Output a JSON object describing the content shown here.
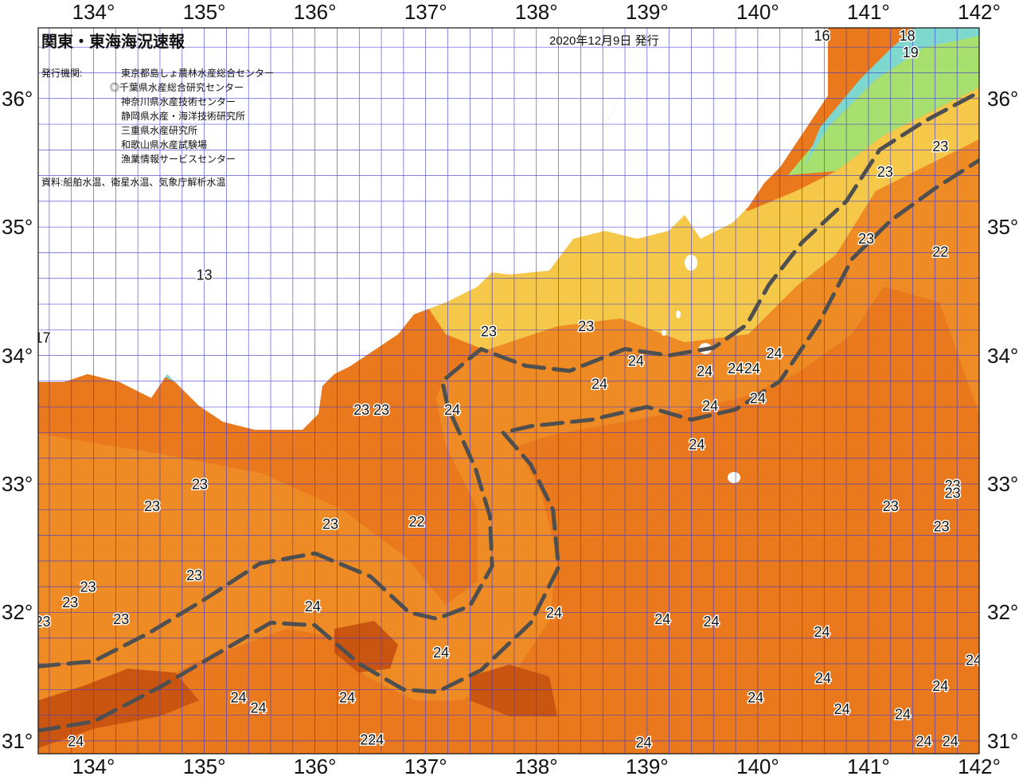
{
  "header": {
    "title": "関東・東海海況速報",
    "date": "2020年12月9日 発行",
    "issuers_label": "発行機関:",
    "issuers": [
      "東京都島しょ農林水産総合センター",
      "◎千葉県水産総合研究センター",
      "神奈川県水産技術センター",
      "静岡県水産・海洋技術研究所",
      "三重県水産研究所",
      "和歌山県水産試験場",
      "漁業情報サービスセンター"
    ],
    "source": "資料:船舶水温、衛星水温、気象庁解析水温"
  },
  "axes": {
    "longitude_labels": [
      "134°",
      "135°",
      "136°",
      "137°",
      "138°",
      "139°",
      "140°",
      "141°",
      "142°"
    ],
    "longitude_values": [
      134,
      135,
      136,
      137,
      138,
      139,
      140,
      141,
      142
    ],
    "latitude_labels": [
      "36°",
      "35°",
      "34°",
      "33°",
      "32°",
      "31°"
    ],
    "latitude_values": [
      36,
      35,
      34,
      33,
      32,
      31
    ],
    "lon_range": [
      133.5,
      142.0
    ],
    "lat_range": [
      30.9,
      36.55
    ]
  },
  "colors": {
    "land": "#ffffff",
    "sea_22": "#f39a2e",
    "sea_23": "#ec8020",
    "sea_24": "#e26e14",
    "sea_25": "#c95510",
    "coast_21": "#f5c84a",
    "coast_19": "#a8e070",
    "coast_17": "#7fd8ce",
    "grid": "#3d3ad6",
    "kuroshio_axis": "#4f4f4f"
  },
  "temperature_labels": [
    {
      "text": "23",
      "lon": 137.57,
      "lat": 34.18
    },
    {
      "text": "23",
      "lon": 138.45,
      "lat": 34.22
    },
    {
      "text": "23",
      "lon": 141.65,
      "lat": 35.62
    },
    {
      "text": "23",
      "lon": 141.15,
      "lat": 35.42
    },
    {
      "text": "23",
      "lon": 140.98,
      "lat": 34.9
    },
    {
      "text": "22",
      "lon": 141.65,
      "lat": 34.8
    },
    {
      "text": "24",
      "lon": 140.15,
      "lat": 34.01
    },
    {
      "text": "24",
      "lon": 139.95,
      "lat": 33.89
    },
    {
      "text": "24",
      "lon": 139.8,
      "lat": 33.89
    },
    {
      "text": "24",
      "lon": 139.52,
      "lat": 33.87
    },
    {
      "text": "24",
      "lon": 138.9,
      "lat": 33.95
    },
    {
      "text": "24",
      "lon": 138.57,
      "lat": 33.77
    },
    {
      "text": "24",
      "lon": 140.0,
      "lat": 33.66
    },
    {
      "text": "24",
      "lon": 139.57,
      "lat": 33.6
    },
    {
      "text": "24",
      "lon": 139.45,
      "lat": 33.3
    },
    {
      "text": "24",
      "lon": 137.24,
      "lat": 33.57
    },
    {
      "text": "23",
      "lon": 136.42,
      "lat": 33.57
    },
    {
      "text": "23",
      "lon": 136.6,
      "lat": 33.57
    },
    {
      "text": "23",
      "lon": 134.96,
      "lat": 32.99
    },
    {
      "text": "23",
      "lon": 134.53,
      "lat": 32.82
    },
    {
      "text": "23",
      "lon": 136.14,
      "lat": 32.68
    },
    {
      "text": "22",
      "lon": 136.92,
      "lat": 32.7
    },
    {
      "text": "23",
      "lon": 134.91,
      "lat": 32.28
    },
    {
      "text": "23",
      "lon": 133.95,
      "lat": 32.19
    },
    {
      "text": "23",
      "lon": 133.79,
      "lat": 32.07
    },
    {
      "text": "23",
      "lon": 133.54,
      "lat": 31.92
    },
    {
      "text": "23",
      "lon": 134.25,
      "lat": 31.94
    },
    {
      "text": "24",
      "lon": 135.98,
      "lat": 32.04
    },
    {
      "text": "24",
      "lon": 138.16,
      "lat": 31.99
    },
    {
      "text": "24",
      "lon": 139.14,
      "lat": 31.94
    },
    {
      "text": "24",
      "lon": 139.58,
      "lat": 31.92
    },
    {
      "text": "24",
      "lon": 140.58,
      "lat": 31.84
    },
    {
      "text": "24",
      "lon": 141.95,
      "lat": 31.62
    },
    {
      "text": "24",
      "lon": 137.14,
      "lat": 31.68
    },
    {
      "text": "24",
      "lon": 140.59,
      "lat": 31.48
    },
    {
      "text": "24",
      "lon": 141.65,
      "lat": 31.42
    },
    {
      "text": "24",
      "lon": 135.31,
      "lat": 31.33
    },
    {
      "text": "24",
      "lon": 135.49,
      "lat": 31.25
    },
    {
      "text": "24",
      "lon": 136.29,
      "lat": 31.33
    },
    {
      "text": "24",
      "lon": 139.98,
      "lat": 31.33
    },
    {
      "text": "24",
      "lon": 140.76,
      "lat": 31.24
    },
    {
      "text": "24",
      "lon": 141.31,
      "lat": 31.2
    },
    {
      "text": "23",
      "lon": 141.2,
      "lat": 32.82
    },
    {
      "text": "23",
      "lon": 141.66,
      "lat": 32.66
    },
    {
      "text": "23",
      "lon": 141.76,
      "lat": 32.98
    },
    {
      "text": "23",
      "lon": 141.76,
      "lat": 32.92
    },
    {
      "text": "24",
      "lon": 133.84,
      "lat": 30.99
    },
    {
      "text": "24",
      "lon": 136.48,
      "lat": 31.0
    },
    {
      "text": "24",
      "lon": 136.55,
      "lat": 31.0
    },
    {
      "text": "24",
      "lon": 138.97,
      "lat": 30.98
    },
    {
      "text": "24",
      "lon": 141.5,
      "lat": 30.99
    },
    {
      "text": "24",
      "lon": 141.74,
      "lat": 30.99
    },
    {
      "text": "17",
      "lon": 133.54,
      "lat": 34.13
    },
    {
      "text": "13",
      "lon": 135.0,
      "lat": 34.62
    },
    {
      "text": "16",
      "lon": 140.58,
      "lat": 36.48
    },
    {
      "text": "18",
      "lon": 141.35,
      "lat": 36.48
    },
    {
      "text": "19",
      "lon": 141.38,
      "lat": 36.35
    }
  ],
  "kuroshio_lines": [
    {
      "name": "inner",
      "points": [
        [
          133.5,
          31.58
        ],
        [
          134.0,
          31.62
        ],
        [
          134.5,
          31.84
        ],
        [
          135.0,
          32.1
        ],
        [
          135.5,
          32.38
        ],
        [
          136.0,
          32.46
        ],
        [
          136.5,
          32.28
        ],
        [
          136.85,
          32.0
        ],
        [
          137.1,
          31.95
        ],
        [
          137.4,
          32.05
        ],
        [
          137.6,
          32.36
        ],
        [
          137.58,
          32.75
        ],
        [
          137.45,
          33.12
        ],
        [
          137.2,
          33.6
        ],
        [
          137.15,
          33.8
        ],
        [
          137.5,
          34.05
        ],
        [
          137.9,
          33.92
        ],
        [
          138.3,
          33.88
        ],
        [
          138.8,
          34.05
        ],
        [
          139.2,
          34.0
        ],
        [
          139.6,
          34.06
        ],
        [
          139.9,
          34.24
        ],
        [
          140.1,
          34.55
        ],
        [
          140.4,
          34.88
        ],
        [
          140.8,
          35.2
        ],
        [
          141.1,
          35.6
        ],
        [
          141.5,
          35.82
        ],
        [
          142.0,
          36.05
        ]
      ]
    },
    {
      "name": "outer",
      "points": [
        [
          133.5,
          31.08
        ],
        [
          134.0,
          31.15
        ],
        [
          134.6,
          31.42
        ],
        [
          135.2,
          31.72
        ],
        [
          135.6,
          31.92
        ],
        [
          136.0,
          31.9
        ],
        [
          136.4,
          31.6
        ],
        [
          136.8,
          31.4
        ],
        [
          137.1,
          31.38
        ],
        [
          137.5,
          31.55
        ],
        [
          137.95,
          31.92
        ],
        [
          138.2,
          32.35
        ],
        [
          138.15,
          32.8
        ],
        [
          137.95,
          33.15
        ],
        [
          137.7,
          33.4
        ],
        [
          137.95,
          33.45
        ],
        [
          138.5,
          33.5
        ],
        [
          139.0,
          33.6
        ],
        [
          139.4,
          33.5
        ],
        [
          139.8,
          33.58
        ],
        [
          140.2,
          33.8
        ],
        [
          140.55,
          34.25
        ],
        [
          140.85,
          34.75
        ],
        [
          141.2,
          35.05
        ],
        [
          141.6,
          35.3
        ],
        [
          142.0,
          35.52
        ]
      ]
    }
  ]
}
